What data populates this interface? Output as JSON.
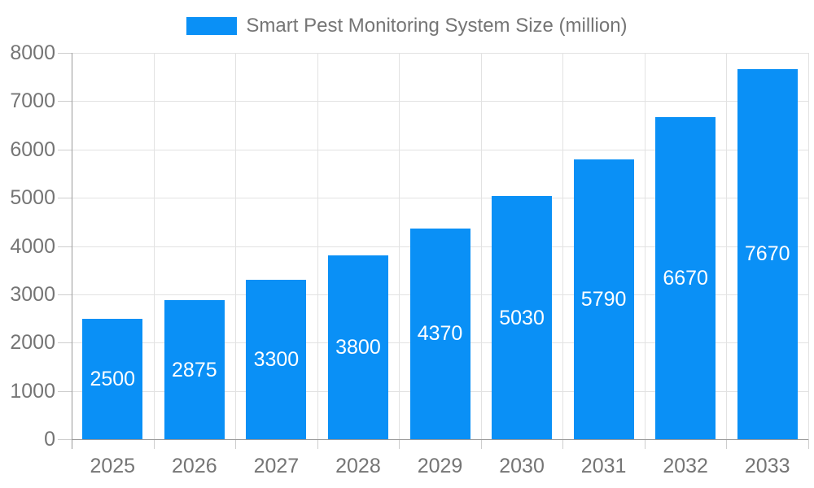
{
  "legend": {
    "label": "Smart Pest Monitoring System Size (million)"
  },
  "colors": {
    "bar": "#0A90F6",
    "grid_line": "#E2E2E2",
    "axis_line": "#9A9A9A",
    "tick_mark": "#CDCDCD",
    "axis_text": "#757575",
    "bar_label_text": "#FFFFFF",
    "background": "#FFFFFF"
  },
  "chart_data": {
    "type": "bar",
    "title": "Smart Pest Monitoring System Size (million)",
    "categories": [
      "2025",
      "2026",
      "2027",
      "2028",
      "2029",
      "2030",
      "2031",
      "2032",
      "2033"
    ],
    "values": [
      2500,
      2875,
      3300,
      3800,
      4370,
      5030,
      5790,
      6670,
      7670
    ],
    "bar_value_labels": [
      "2500",
      "2875",
      "3300",
      "3800",
      "4370",
      "5030",
      "5790",
      "6670",
      "7670"
    ],
    "xlabel": "",
    "ylabel": "",
    "ylim": [
      0,
      8000
    ],
    "ytick_interval": 1000,
    "ytick_labels": [
      "0",
      "1000",
      "2000",
      "3000",
      "4000",
      "5000",
      "6000",
      "7000",
      "8000"
    ],
    "grid": true,
    "legend_position": "top",
    "bar_label_position": "inside-center"
  }
}
